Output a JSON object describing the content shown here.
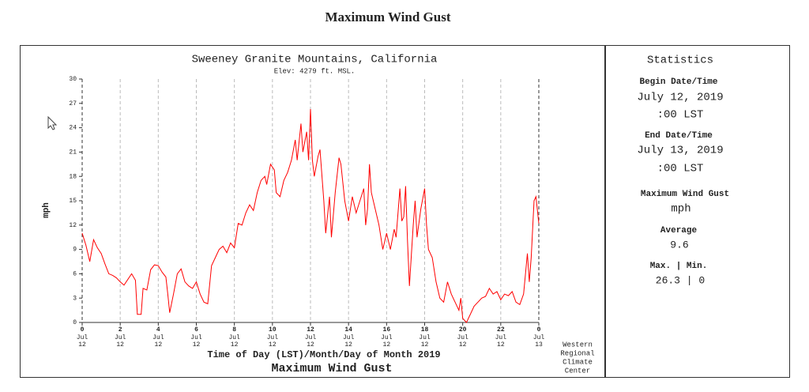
{
  "page_title": "Maximum Wind Gust",
  "chart_data": {
    "type": "line",
    "title": "Sweeney Granite Mountains, California",
    "subtitle": "Elev: 4279 ft. MSL.",
    "y_label": "mph",
    "x_label": "Time of Day (LST)/Month/Day of Month 2019",
    "footer": "Maximum Wind Gust",
    "credit": [
      "Western",
      "Regional",
      "Climate",
      "Center"
    ],
    "xlim": [
      0,
      24
    ],
    "xticks": [
      0,
      2,
      4,
      6,
      8,
      10,
      12,
      14,
      16,
      18,
      20,
      22,
      {
        "value": 24,
        "label": "0"
      }
    ],
    "xtick_months": [
      "Jul",
      "Jul",
      "Jul",
      "Jul",
      "Jul",
      "Jul",
      "Jul",
      "Jul",
      "Jul",
      "Jul",
      "Jul",
      "Jul",
      "Jul"
    ],
    "xtick_days": [
      "12",
      "12",
      "12",
      "12",
      "12",
      "12",
      "12",
      "12",
      "12",
      "12",
      "12",
      "12",
      "13"
    ],
    "ylim": [
      0,
      30
    ],
    "yticks": [
      0,
      3,
      6,
      9,
      12,
      15,
      18,
      21,
      24,
      27,
      30
    ],
    "grid": true,
    "x": [
      0,
      0.2,
      0.4,
      0.6,
      0.8,
      1.0,
      1.2,
      1.4,
      1.6,
      1.8,
      2.0,
      2.2,
      2.4,
      2.6,
      2.8,
      2.9,
      3.1,
      3.2,
      3.4,
      3.6,
      3.8,
      4.0,
      4.2,
      4.4,
      4.5,
      4.6,
      4.8,
      5.0,
      5.2,
      5.4,
      5.6,
      5.8,
      6.0,
      6.2,
      6.4,
      6.6,
      6.8,
      7.0,
      7.2,
      7.4,
      7.6,
      7.8,
      8.0,
      8.2,
      8.4,
      8.6,
      8.8,
      9.0,
      9.2,
      9.4,
      9.6,
      9.7,
      9.9,
      10.1,
      10.2,
      10.4,
      10.6,
      10.8,
      11.0,
      11.2,
      11.3,
      11.5,
      11.6,
      11.8,
      11.9,
      12.0,
      12.1,
      12.2,
      12.4,
      12.5,
      12.7,
      12.8,
      13.0,
      13.1,
      13.3,
      13.5,
      13.6,
      13.8,
      14.0,
      14.2,
      14.4,
      14.6,
      14.8,
      14.9,
      15.0,
      15.1,
      15.2,
      15.4,
      15.6,
      15.8,
      16.0,
      16.2,
      16.4,
      16.5,
      16.7,
      16.8,
      16.9,
      17.0,
      17.1,
      17.2,
      17.4,
      17.5,
      17.6,
      17.8,
      18.0,
      18.1,
      18.2,
      18.4,
      18.6,
      18.8,
      19.0,
      19.2,
      19.4,
      19.6,
      19.8,
      19.9,
      20.0,
      20.2,
      20.4,
      20.6,
      20.8,
      21.0,
      21.2,
      21.4,
      21.6,
      21.8,
      22.0,
      22.2,
      22.4,
      22.6,
      22.8,
      23.0,
      23.2,
      23.3,
      23.4,
      23.5,
      23.6,
      23.75,
      23.85,
      24.0
    ],
    "series": [
      {
        "name": "Maximum Wind Gust",
        "color": "#ff0000",
        "values": [
          11,
          9.5,
          7.5,
          10.2,
          9.2,
          8.5,
          7.2,
          6.0,
          5.8,
          5.5,
          5.0,
          4.6,
          5.3,
          6.0,
          5.2,
          1.0,
          1.0,
          4.2,
          4.0,
          6.5,
          7.1,
          7.0,
          6.2,
          5.6,
          3.5,
          1.2,
          3.5,
          6.0,
          6.6,
          5.0,
          4.5,
          4.2,
          5.0,
          3.5,
          2.5,
          2.3,
          7.0,
          8.0,
          9.0,
          9.4,
          8.6,
          9.8,
          9.2,
          12.2,
          12.0,
          13.5,
          14.5,
          13.8,
          16.0,
          17.5,
          18.0,
          17.0,
          19.5,
          18.8,
          16.0,
          15.5,
          17.5,
          18.5,
          20.0,
          22.5,
          20.0,
          24.5,
          21.0,
          23.5,
          20.0,
          26.3,
          20.0,
          18.0,
          20.5,
          21.3,
          15.0,
          11.0,
          15.5,
          10.5,
          16.0,
          20.3,
          19.5,
          15.0,
          12.5,
          15.5,
          13.5,
          15.0,
          16.5,
          12.0,
          14.0,
          19.5,
          16.0,
          14.0,
          12.0,
          9.0,
          11.0,
          9.0,
          11.5,
          10.5,
          16.5,
          12.5,
          13.0,
          16.8,
          10.0,
          4.5,
          12.0,
          15.0,
          10.5,
          14.0,
          16.5,
          12.0,
          9.0,
          8.0,
          5.0,
          3.0,
          2.5,
          5.0,
          3.5,
          2.5,
          1.5,
          3.0,
          0.5,
          0,
          1.0,
          2.0,
          2.5,
          3.0,
          3.2,
          4.2,
          3.5,
          3.8,
          2.8,
          3.5,
          3.3,
          3.8,
          2.5,
          2.2,
          3.5,
          6.0,
          8.5,
          5.0,
          8.0,
          15.0,
          15.5,
          12.2
        ]
      }
    ]
  },
  "statistics": {
    "heading": "Statistics",
    "begin_label": "Begin Date/Time",
    "begin_date": "July 12, 2019",
    "begin_time": ":00 LST",
    "end_label": "End Date/Time",
    "end_date": "July 13, 2019",
    "end_time": ":00 LST",
    "element_label": "Maximum Wind Gust",
    "element_unit": "mph",
    "average_label": "Average",
    "average_value": "9.6",
    "maxmin_label": "Max. | Min.",
    "maxmin_value": "26.3 | 0"
  }
}
